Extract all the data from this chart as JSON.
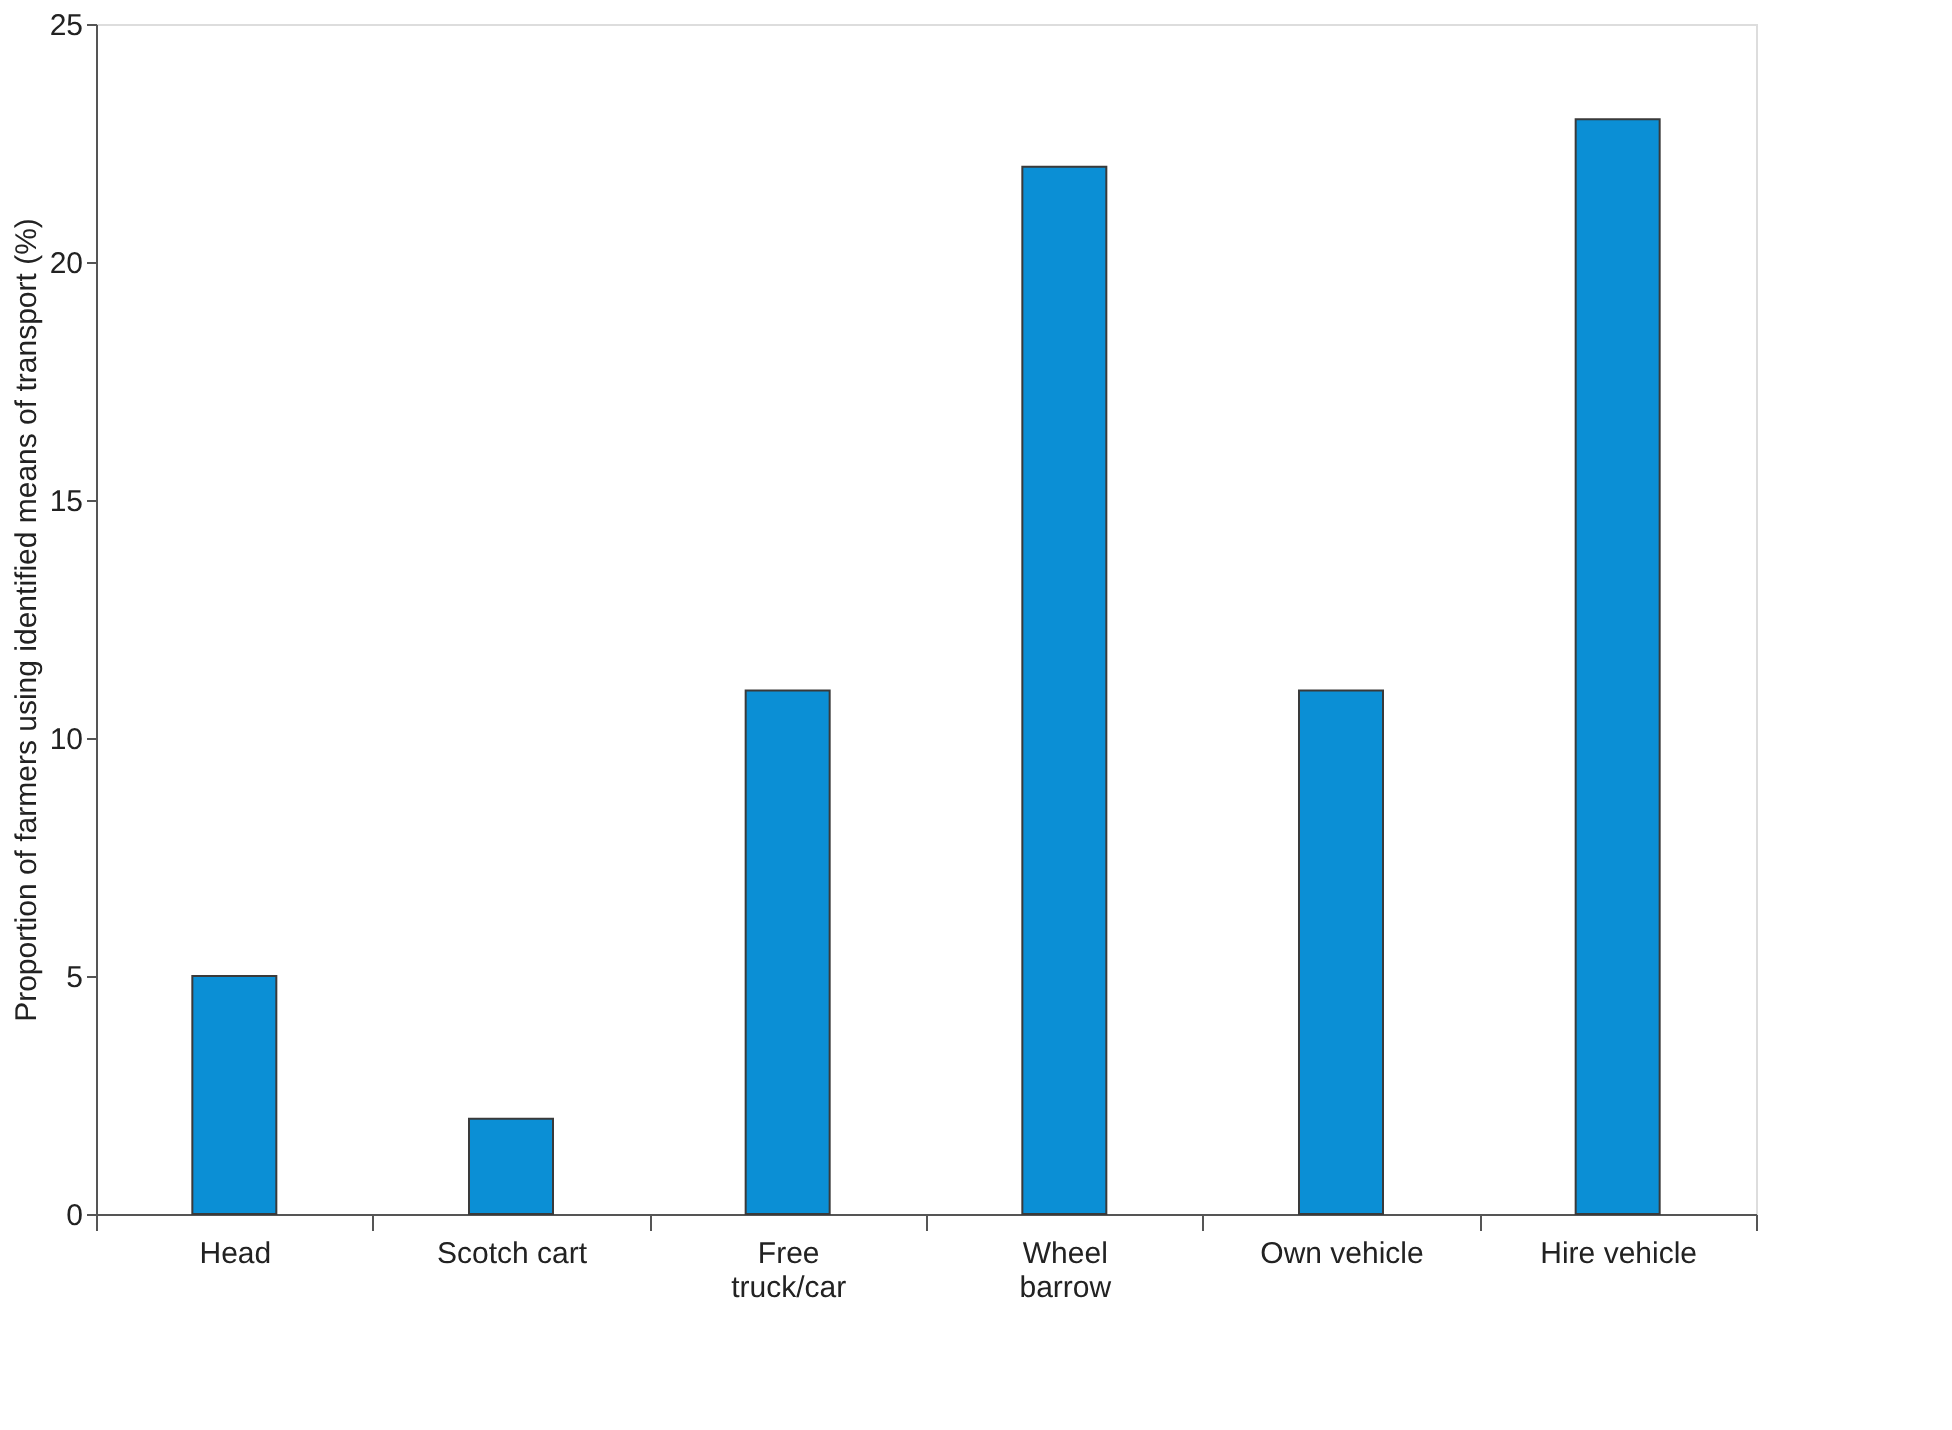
{
  "chart_data": {
    "type": "bar",
    "ylabel": "Proportion of farmers using identified means of transport (%)",
    "categories": [
      "Head",
      "Scotch cart",
      "Free\ntruck/car",
      "Wheel\nbarrow",
      "Own vehicle",
      "Hire vehicle"
    ],
    "values": [
      5,
      2,
      11,
      22,
      11,
      23
    ],
    "color": "#0b8fd5",
    "ylim": [
      0,
      25
    ],
    "yticks": [
      0,
      5,
      10,
      15,
      20,
      25
    ],
    "grid": false
  }
}
